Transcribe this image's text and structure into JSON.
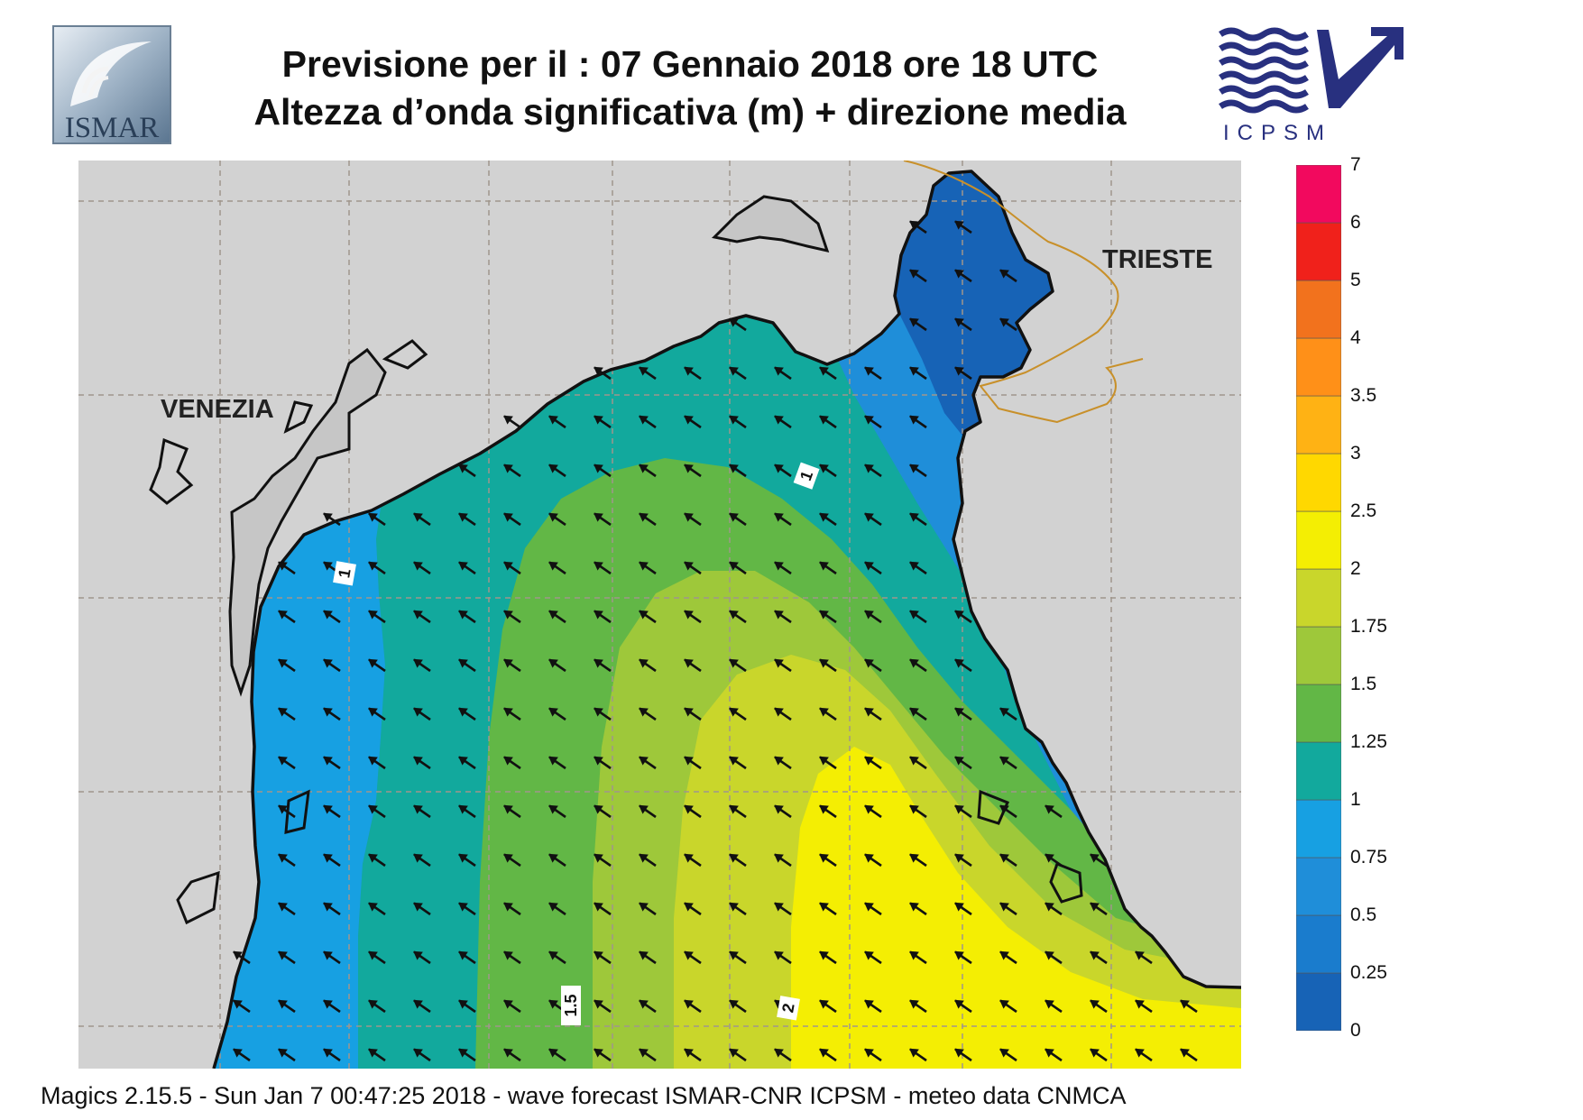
{
  "header": {
    "title_line1": "Previsione per il  :  07  Gennaio  2018   ore 18 UTC",
    "title_line2": "Altezza d’onda significativa (m) + direzione media"
  },
  "logos": {
    "left": {
      "text": "ISMAR",
      "icon": "ismar-logo"
    },
    "right": {
      "text": "ICPSM",
      "icon": "icpsm-logo"
    }
  },
  "map": {
    "cities": {
      "venezia": "VENEZIA",
      "trieste": "TRIESTE"
    },
    "contour_labels": {
      "c1": "1",
      "c2": "1",
      "c15": "1.5",
      "c20": "2"
    },
    "arrow_direction": "north-west",
    "colors": {
      "land": "#d2d2d2",
      "coast": "#111111",
      "border": "#c8902a",
      "grid": "#a0968c"
    }
  },
  "legend": {
    "levels": [
      "0",
      "0.25",
      "0.5",
      "0.75",
      "1",
      "1.25",
      "1.5",
      "1.75",
      "2",
      "2.5",
      "3",
      "3.5",
      "4",
      "5",
      "6",
      "7"
    ],
    "colors": [
      "#1763b6",
      "#1a7ccd",
      "#1f8ed9",
      "#17a0e2",
      "#12a99d",
      "#62b746",
      "#9ec83a",
      "#c9d62b",
      "#f4ee03",
      "#ffd800",
      "#ffb214",
      "#ff9018",
      "#f2721d",
      "#f0211b",
      "#f2095e"
    ]
  },
  "footer": {
    "text": "Magics 2.15.5 - Sun Jan  7 00:47:25 2018 - wave forecast  ISMAR-CNR  ICPSM - meteo data   CNMCA"
  }
}
